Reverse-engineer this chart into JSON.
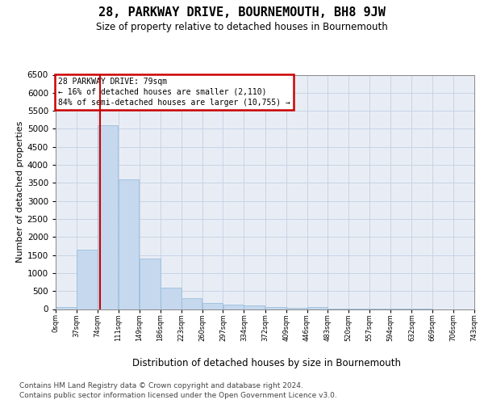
{
  "title": "28, PARKWAY DRIVE, BOURNEMOUTH, BH8 9JW",
  "subtitle": "Size of property relative to detached houses in Bournemouth",
  "xlabel": "Distribution of detached houses by size in Bournemouth",
  "ylabel": "Number of detached properties",
  "annotation_line0": "28 PARKWAY DRIVE: 79sqm",
  "annotation_line1": "← 16% of detached houses are smaller (2,110)",
  "annotation_line2": "84% of semi-detached houses are larger (10,755) →",
  "footer1": "Contains HM Land Registry data © Crown copyright and database right 2024.",
  "footer2": "Contains public sector information licensed under the Open Government Licence v3.0.",
  "property_size": 79,
  "bin_edges": [
    0,
    37,
    74,
    111,
    149,
    186,
    223,
    260,
    297,
    334,
    372,
    409,
    446,
    483,
    520,
    557,
    594,
    632,
    669,
    706,
    743
  ],
  "bar_heights": [
    60,
    1650,
    5100,
    3600,
    1400,
    590,
    300,
    165,
    130,
    90,
    55,
    25,
    55,
    5,
    3,
    2,
    1,
    1,
    0,
    0
  ],
  "bar_fill": "#c5d8ee",
  "bar_edge": "#92b8d8",
  "grid_color": "#c8d4e4",
  "bg_color": "#e8edf5",
  "vline_color": "#cc0000",
  "box_edge_color": "#cc0000",
  "ylim_max": 6500,
  "xlim_max": 743,
  "xtick_vals": [
    0,
    37,
    74,
    111,
    149,
    186,
    223,
    260,
    297,
    334,
    372,
    409,
    446,
    483,
    520,
    557,
    594,
    632,
    669,
    706,
    743
  ],
  "ytick_vals": [
    0,
    500,
    1000,
    1500,
    2000,
    2500,
    3000,
    3500,
    4000,
    4500,
    5000,
    5500,
    6000,
    6500
  ]
}
